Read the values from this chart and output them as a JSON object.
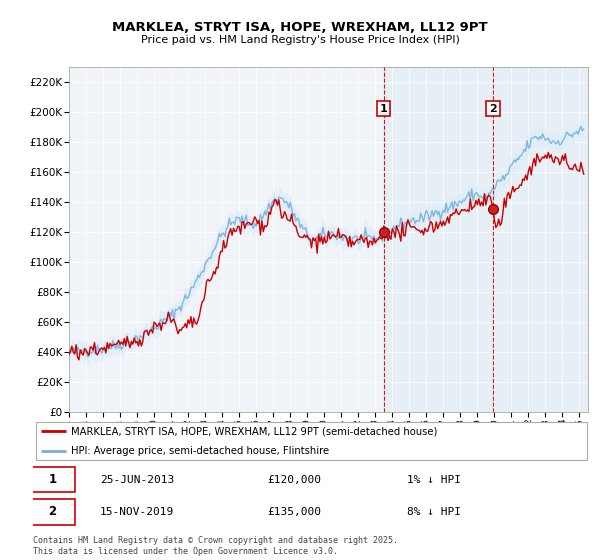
{
  "title": "MARKLEA, STRYT ISA, HOPE, WREXHAM, LL12 9PT",
  "subtitle": "Price paid vs. HM Land Registry's House Price Index (HPI)",
  "legend_line1": "MARKLEA, STRYT ISA, HOPE, WREXHAM, LL12 9PT (semi-detached house)",
  "legend_line2": "HPI: Average price, semi-detached house, Flintshire",
  "footnote": "Contains HM Land Registry data © Crown copyright and database right 2025.\nThis data is licensed under the Open Government Licence v3.0.",
  "marker1_date": "25-JUN-2013",
  "marker1_price": "£120,000",
  "marker1_hpi": "1% ↓ HPI",
  "marker2_date": "15-NOV-2019",
  "marker2_price": "£135,000",
  "marker2_hpi": "8% ↓ HPI",
  "red_line_color": "#cc0000",
  "blue_line_color": "#7aaedb",
  "blue_fill_color": "#ddeef8",
  "chart_bg_color": "#eef4fa",
  "marker_vline_color": "#cc0000",
  "yticks": [
    0,
    20000,
    40000,
    60000,
    80000,
    100000,
    120000,
    140000,
    160000,
    180000,
    200000,
    220000
  ],
  "ytick_labels": [
    "£0",
    "£20K",
    "£40K",
    "£60K",
    "£80K",
    "£100K",
    "£120K",
    "£140K",
    "£160K",
    "£180K",
    "£200K",
    "£220K"
  ],
  "marker1_x": 2013.5,
  "marker1_y": 120000,
  "marker2_x": 2019.92,
  "marker2_y": 135000,
  "xmin": 1995,
  "xmax": 2025.5,
  "ymin": 0,
  "ymax": 230000
}
